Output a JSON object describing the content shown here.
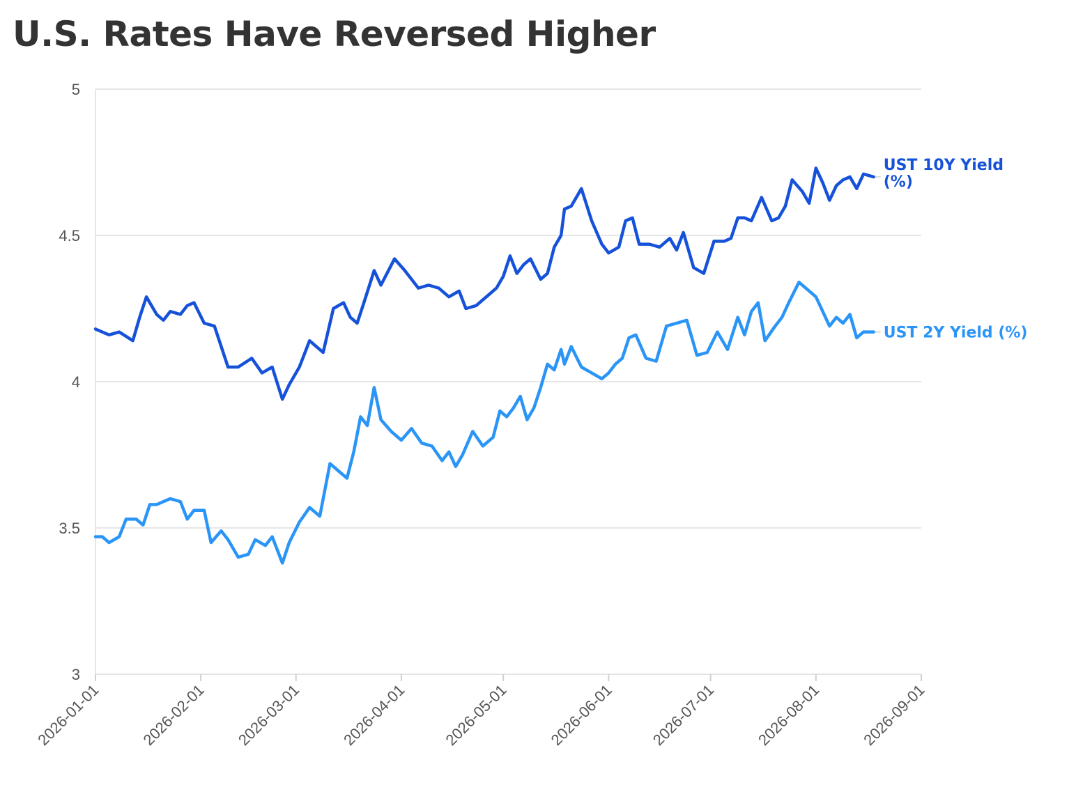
{
  "chart_data": {
    "type": "line",
    "title": "U.S. Rates Have Reversed Higher",
    "xlabel": "",
    "ylabel": "",
    "ylim": [
      3,
      5
    ],
    "y_ticks": [
      "3",
      "3.5",
      "4",
      "4.5",
      "5"
    ],
    "x_ticks": [
      "2026-01-01",
      "2026-02-01",
      "2026-03-01",
      "2026-04-01",
      "2026-05-01",
      "2026-06-01",
      "2026-07-01",
      "2026-08-01",
      "2026-09-01"
    ],
    "xlim": [
      "2026-01-01",
      "2026-09-01"
    ],
    "grid": "horizontal",
    "legend": "direct labels at line ends",
    "series": [
      {
        "name": "UST 10Y Yield (%)",
        "label_lines": [
          "UST 10Y Yield",
          "(%)"
        ],
        "color": "#1652d9",
        "x": [
          "2026-01-01",
          "2026-01-05",
          "2026-01-08",
          "2026-01-12",
          "2026-01-14",
          "2026-01-16",
          "2026-01-19",
          "2026-01-21",
          "2026-01-23",
          "2026-01-26",
          "2026-01-28",
          "2026-01-30",
          "2026-02-02",
          "2026-02-05",
          "2026-02-09",
          "2026-02-12",
          "2026-02-16",
          "2026-02-19",
          "2026-02-22",
          "2026-02-25",
          "2026-02-27",
          "2026-03-02",
          "2026-03-05",
          "2026-03-09",
          "2026-03-12",
          "2026-03-15",
          "2026-03-17",
          "2026-03-19",
          "2026-03-21",
          "2026-03-24",
          "2026-03-26",
          "2026-03-30",
          "2026-04-02",
          "2026-04-06",
          "2026-04-09",
          "2026-04-12",
          "2026-04-15",
          "2026-04-18",
          "2026-04-20",
          "2026-04-23",
          "2026-04-27",
          "2026-04-29",
          "2026-05-01",
          "2026-05-03",
          "2026-05-05",
          "2026-05-07",
          "2026-05-09",
          "2026-05-12",
          "2026-05-14",
          "2026-05-16",
          "2026-05-18",
          "2026-05-19",
          "2026-05-21",
          "2026-05-24",
          "2026-05-27",
          "2026-05-30",
          "2026-06-01",
          "2026-06-04",
          "2026-06-06",
          "2026-06-08",
          "2026-06-10",
          "2026-06-13",
          "2026-06-16",
          "2026-06-19",
          "2026-06-21",
          "2026-06-23",
          "2026-06-26",
          "2026-06-29",
          "2026-07-02",
          "2026-07-05",
          "2026-07-07",
          "2026-07-09",
          "2026-07-11",
          "2026-07-13",
          "2026-07-16",
          "2026-07-19",
          "2026-07-21",
          "2026-07-23",
          "2026-07-25",
          "2026-07-28",
          "2026-07-30",
          "2026-08-01",
          "2026-08-03",
          "2026-08-05",
          "2026-08-07",
          "2026-08-09",
          "2026-08-11",
          "2026-08-13",
          "2026-08-15",
          "2026-08-18"
        ],
        "values": [
          4.18,
          4.16,
          4.17,
          4.14,
          4.22,
          4.29,
          4.23,
          4.21,
          4.24,
          4.23,
          4.26,
          4.27,
          4.2,
          4.19,
          4.05,
          4.05,
          4.08,
          4.03,
          4.05,
          3.94,
          3.99,
          4.05,
          4.14,
          4.1,
          4.25,
          4.27,
          4.22,
          4.2,
          4.27,
          4.38,
          4.33,
          4.42,
          4.38,
          4.32,
          4.33,
          4.32,
          4.29,
          4.31,
          4.25,
          4.26,
          4.3,
          4.32,
          4.36,
          4.43,
          4.37,
          4.4,
          4.42,
          4.35,
          4.37,
          4.46,
          4.5,
          4.59,
          4.6,
          4.66,
          4.55,
          4.47,
          4.44,
          4.46,
          4.55,
          4.56,
          4.47,
          4.47,
          4.46,
          4.49,
          4.45,
          4.51,
          4.39,
          4.37,
          4.48,
          4.48,
          4.49,
          4.56,
          4.56,
          4.55,
          4.63,
          4.55,
          4.56,
          4.6,
          4.69,
          4.65,
          4.61,
          4.73,
          4.68,
          4.62,
          4.67,
          4.69,
          4.7,
          4.66,
          4.71,
          4.7
        ]
      },
      {
        "name": "UST 2Y Yield (%)",
        "label_lines": [
          "UST 2Y Yield (%)"
        ],
        "color": "#2b95f7",
        "x": [
          "2026-01-01",
          "2026-01-03",
          "2026-01-05",
          "2026-01-08",
          "2026-01-10",
          "2026-01-13",
          "2026-01-15",
          "2026-01-17",
          "2026-01-19",
          "2026-01-21",
          "2026-01-23",
          "2026-01-26",
          "2026-01-28",
          "2026-01-30",
          "2026-02-02",
          "2026-02-04",
          "2026-02-07",
          "2026-02-09",
          "2026-02-12",
          "2026-02-15",
          "2026-02-17",
          "2026-02-20",
          "2026-02-22",
          "2026-02-25",
          "2026-02-27",
          "2026-03-02",
          "2026-03-05",
          "2026-03-08",
          "2026-03-11",
          "2026-03-13",
          "2026-03-16",
          "2026-03-18",
          "2026-03-20",
          "2026-03-22",
          "2026-03-24",
          "2026-03-26",
          "2026-03-29",
          "2026-04-01",
          "2026-04-04",
          "2026-04-07",
          "2026-04-10",
          "2026-04-13",
          "2026-04-15",
          "2026-04-17",
          "2026-04-19",
          "2026-04-22",
          "2026-04-25",
          "2026-04-28",
          "2026-04-30",
          "2026-05-02",
          "2026-05-04",
          "2026-05-06",
          "2026-05-08",
          "2026-05-10",
          "2026-05-12",
          "2026-05-14",
          "2026-05-16",
          "2026-05-18",
          "2026-05-19",
          "2026-05-21",
          "2026-05-24",
          "2026-05-27",
          "2026-05-30",
          "2026-06-01",
          "2026-06-03",
          "2026-06-05",
          "2026-06-07",
          "2026-06-09",
          "2026-06-12",
          "2026-06-15",
          "2026-06-18",
          "2026-06-21",
          "2026-06-24",
          "2026-06-27",
          "2026-06-30",
          "2026-07-03",
          "2026-07-06",
          "2026-07-09",
          "2026-07-11",
          "2026-07-13",
          "2026-07-15",
          "2026-07-17",
          "2026-07-20",
          "2026-07-22",
          "2026-07-24",
          "2026-07-27",
          "2026-07-30",
          "2026-08-01",
          "2026-08-03",
          "2026-08-05",
          "2026-08-07",
          "2026-08-09",
          "2026-08-11",
          "2026-08-13",
          "2026-08-15",
          "2026-08-18"
        ],
        "values": [
          3.47,
          3.47,
          3.45,
          3.47,
          3.53,
          3.53,
          3.51,
          3.58,
          3.58,
          3.59,
          3.6,
          3.59,
          3.53,
          3.56,
          3.56,
          3.45,
          3.49,
          3.46,
          3.4,
          3.41,
          3.46,
          3.44,
          3.47,
          3.38,
          3.45,
          3.52,
          3.57,
          3.54,
          3.72,
          3.7,
          3.67,
          3.76,
          3.88,
          3.85,
          3.98,
          3.87,
          3.83,
          3.8,
          3.84,
          3.79,
          3.78,
          3.73,
          3.76,
          3.71,
          3.75,
          3.83,
          3.78,
          3.81,
          3.9,
          3.88,
          3.91,
          3.95,
          3.87,
          3.91,
          3.98,
          4.06,
          4.04,
          4.11,
          4.06,
          4.12,
          4.05,
          4.03,
          4.01,
          4.03,
          4.06,
          4.08,
          4.15,
          4.16,
          4.08,
          4.07,
          4.19,
          4.2,
          4.21,
          4.09,
          4.1,
          4.17,
          4.11,
          4.22,
          4.16,
          4.24,
          4.27,
          4.14,
          4.19,
          4.22,
          4.27,
          4.34,
          4.31,
          4.29,
          4.24,
          4.19,
          4.22,
          4.2,
          4.23,
          4.15,
          4.17,
          4.17
        ]
      }
    ]
  }
}
